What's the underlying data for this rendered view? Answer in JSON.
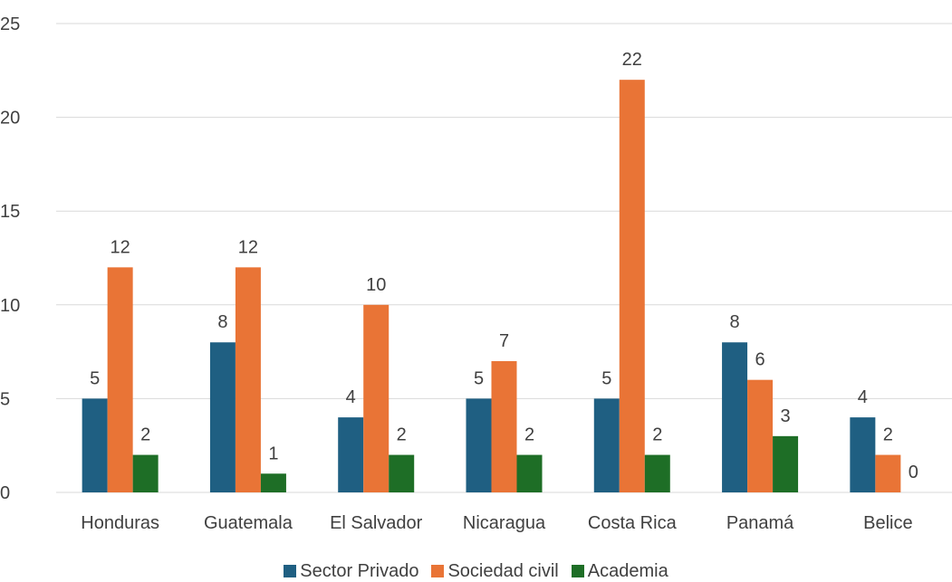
{
  "chart_data": {
    "type": "bar",
    "categories": [
      "Honduras",
      "Guatemala",
      "El Salvador",
      "Nicaragua",
      "Costa Rica",
      "Panamá",
      "Belice"
    ],
    "series": [
      {
        "name": "Sector Privado",
        "color": "#1f5f82",
        "values": [
          5,
          8,
          4,
          5,
          5,
          8,
          4
        ]
      },
      {
        "name": "Sociedad civil",
        "color": "#e97436",
        "values": [
          12,
          12,
          10,
          7,
          22,
          6,
          2
        ]
      },
      {
        "name": "Academia",
        "color": "#1e6e26",
        "values": [
          2,
          1,
          2,
          2,
          2,
          3,
          0
        ]
      }
    ],
    "ylim": [
      0,
      25
    ],
    "yticks": [
      "0",
      "5",
      "10",
      "15",
      "20",
      "25"
    ],
    "grid": true,
    "data_labels": true,
    "legend_position": "bottom"
  }
}
